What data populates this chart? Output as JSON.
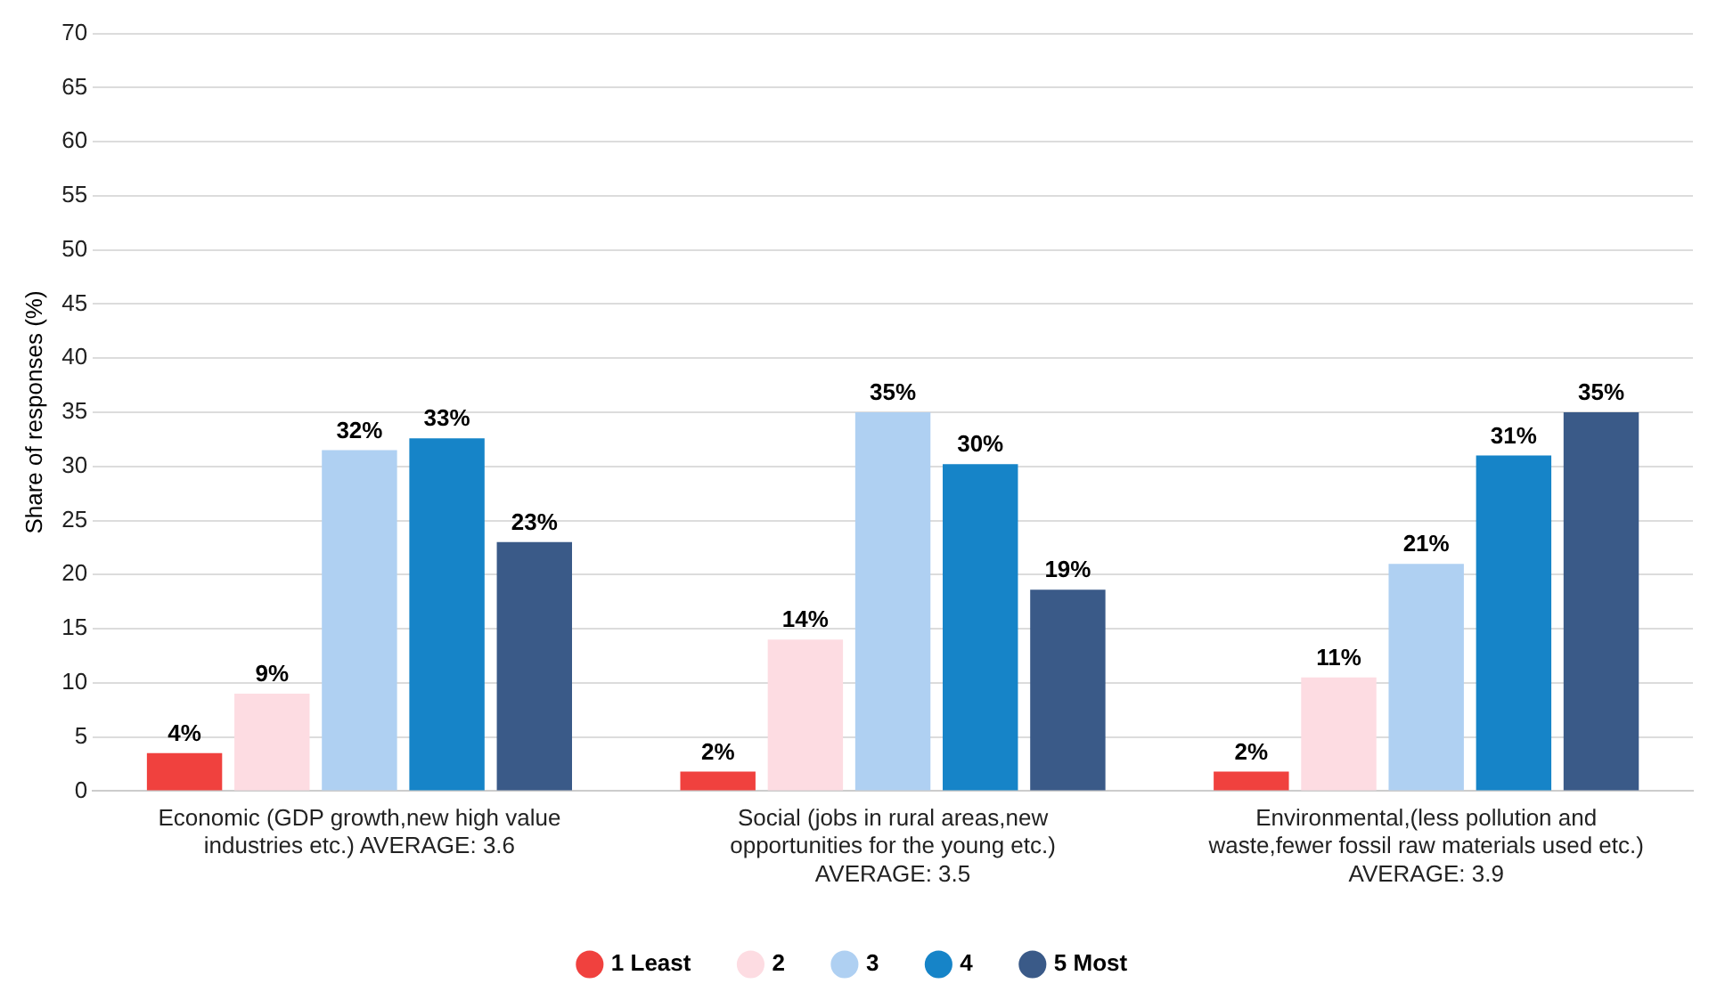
{
  "chart_data": {
    "type": "bar",
    "categories": [
      "Economic (GDP growth,new high value industries etc.) AVERAGE: 3.6",
      "Social (jobs in rural areas,new opportunities for the young etc.) AVERAGE: 3.5",
      "Environmental,(less pollution and waste,fewer fossil raw materials used etc.) AVERAGE: 3.9"
    ],
    "series": [
      {
        "name": "1 Least",
        "color": "#f0413e",
        "values": [
          3.5,
          1.8,
          1.8
        ],
        "value_labels": [
          "4%",
          "2%",
          "2%"
        ]
      },
      {
        "name": "2",
        "color": "#fddce2",
        "values": [
          9,
          14,
          10.5
        ],
        "value_labels": [
          "9%",
          "14%",
          "11%"
        ]
      },
      {
        "name": "3",
        "color": "#afd0f2",
        "values": [
          31.5,
          35,
          21
        ],
        "value_labels": [
          "32%",
          "35%",
          "21%"
        ]
      },
      {
        "name": "4",
        "color": "#1684c8",
        "values": [
          32.6,
          30.2,
          31
        ],
        "value_labels": [
          "33%",
          "30%",
          "31%"
        ]
      },
      {
        "name": "5 Most",
        "color": "#3a5a88",
        "values": [
          23,
          18.6,
          35
        ],
        "value_labels": [
          "23%",
          "19%",
          "35%"
        ]
      }
    ],
    "ylabel": "Share of responses (%)",
    "ylim": [
      0,
      70
    ],
    "yticks": [
      0,
      5,
      10,
      15,
      20,
      25,
      30,
      35,
      40,
      45,
      50,
      55,
      60,
      65,
      70
    ],
    "grid": "y",
    "legend": "bottom"
  }
}
